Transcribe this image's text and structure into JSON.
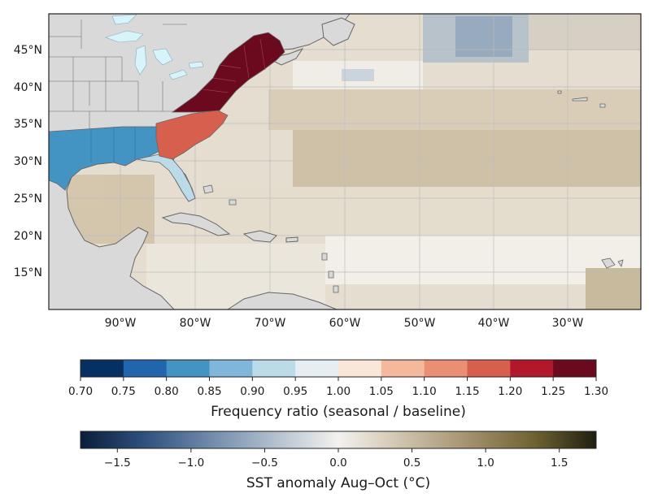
{
  "map": {
    "lat_labels": [
      "45°N",
      "40°N",
      "35°N",
      "30°N",
      "25°N",
      "20°N",
      "15°N"
    ],
    "lon_labels": [
      "90°W",
      "80°W",
      "70°W",
      "60°W",
      "50°W",
      "40°W",
      "30°W"
    ],
    "regions": [
      {
        "name": "Northeast US",
        "frequency_ratio_class": "1.25–1.30",
        "color": "#6b0a1f"
      },
      {
        "name": "Carolinas",
        "frequency_ratio_class": "1.15–1.20",
        "color": "#d6604d"
      },
      {
        "name": "Florida",
        "frequency_ratio_class": "0.90–0.95",
        "color": "#bcdbe9"
      },
      {
        "name": "Gulf Coast",
        "frequency_ratio_class": "0.80–0.85",
        "color": "#4393c3"
      }
    ],
    "colors": {
      "land": "#d9d9d9",
      "lakes": "#d8f4fb",
      "coast": "#666666",
      "grid": "#bdbdbd"
    }
  },
  "colorbar_freq": {
    "title": "Frequency ratio (seasonal / baseline)",
    "ticks": [
      "0.70",
      "0.75",
      "0.80",
      "0.85",
      "0.90",
      "0.95",
      "1.00",
      "1.05",
      "1.10",
      "1.15",
      "1.20",
      "1.25",
      "1.30"
    ],
    "colors": [
      "#053061",
      "#2166ac",
      "#4393c3",
      "#7fb6d9",
      "#bcdbe9",
      "#e5eef2",
      "#fbe6da",
      "#f4b89c",
      "#ea8f73",
      "#d6604d",
      "#b2182b",
      "#6b0a1f"
    ]
  },
  "colorbar_sst": {
    "title": "SST anomaly Aug–Oct (°C)",
    "ticks": [
      "−1.5",
      "−1.0",
      "−0.5",
      "0.0",
      "0.5",
      "1.0",
      "1.5"
    ],
    "range": [
      -1.75,
      1.75
    ],
    "colors": [
      "#0b1d3a",
      "#2d4f7c",
      "#7e97b3",
      "#c9d2da",
      "#f3f1ee",
      "#d7ccb8",
      "#a89674",
      "#6f6232",
      "#1f1f10"
    ]
  }
}
